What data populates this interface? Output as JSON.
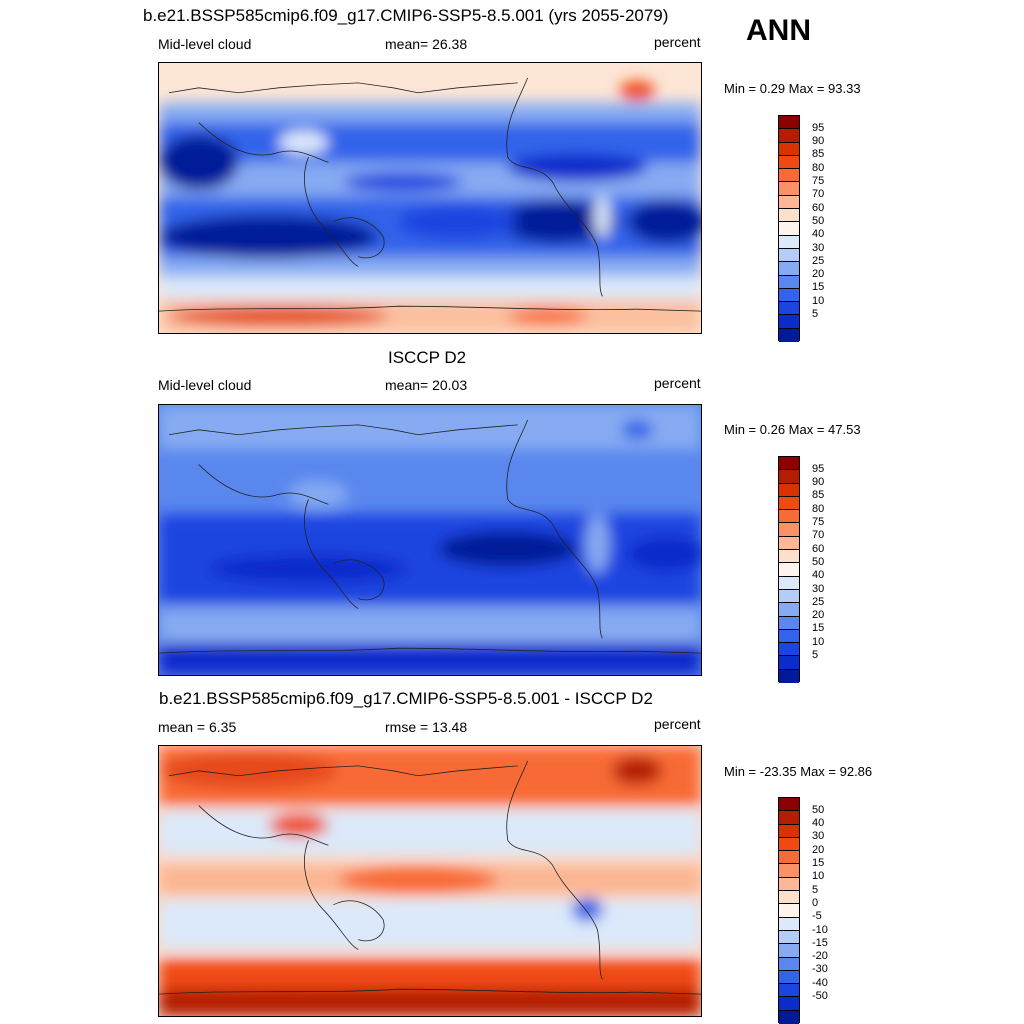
{
  "season": "ANN",
  "panels": [
    {
      "title": "b.e21.BSSP585cmip6.f09_g17.CMIP6-SSP5-8.5.001 (yrs 2055-2079)",
      "left_label": "Mid-level cloud",
      "center_label": "mean=  26.38",
      "right_label": "percent",
      "minmax": "Min =    0.29 Max =  93.33",
      "map_name": "model-mid-level-cloud-map"
    },
    {
      "title": "ISCCP D2",
      "left_label": "Mid-level cloud",
      "center_label": "mean=  20.03",
      "right_label": "percent",
      "minmax": "Min =    0.26 Max =  47.53",
      "map_name": "observed-mid-level-cloud-map"
    },
    {
      "title": "b.e21.BSSP585cmip6.f09_g17.CMIP6-SSP5-8.5.001 - ISCCP D2",
      "left_label": "mean =   6.35",
      "center_label": "rmse =  13.48",
      "right_label": "percent",
      "minmax": "Min = -23.35 Max =  92.86",
      "map_name": "difference-map"
    }
  ],
  "colorbar_abs": {
    "labels": [
      "95",
      "90",
      "85",
      "80",
      "75",
      "70",
      "60",
      "50",
      "40",
      "30",
      "25",
      "20",
      "15",
      "10",
      "5"
    ],
    "colors": [
      "#8c0000",
      "#b31e00",
      "#d93200",
      "#f04a12",
      "#f86a36",
      "#fb9266",
      "#fdb797",
      "#fde0cc",
      "#fff5ec",
      "#dbe9fb",
      "#b3cdf7",
      "#86abf2",
      "#5a87ee",
      "#3363ea",
      "#1a45e0",
      "#0a2ccc",
      "#001a99"
    ]
  },
  "colorbar_diff": {
    "labels": [
      "50",
      "40",
      "30",
      "20",
      "15",
      "10",
      "5",
      "0",
      "-5",
      "-10",
      "-15",
      "-20",
      "-30",
      "-40",
      "-50"
    ],
    "colors": [
      "#8c0000",
      "#b31e00",
      "#d93200",
      "#f04a12",
      "#f86a36",
      "#fb9266",
      "#fdb797",
      "#fde0cc",
      "#fff5ec",
      "#dbe9fb",
      "#b3cdf7",
      "#86abf2",
      "#5a87ee",
      "#3363ea",
      "#1a45e0",
      "#0a2ccc",
      "#001a99"
    ]
  }
}
